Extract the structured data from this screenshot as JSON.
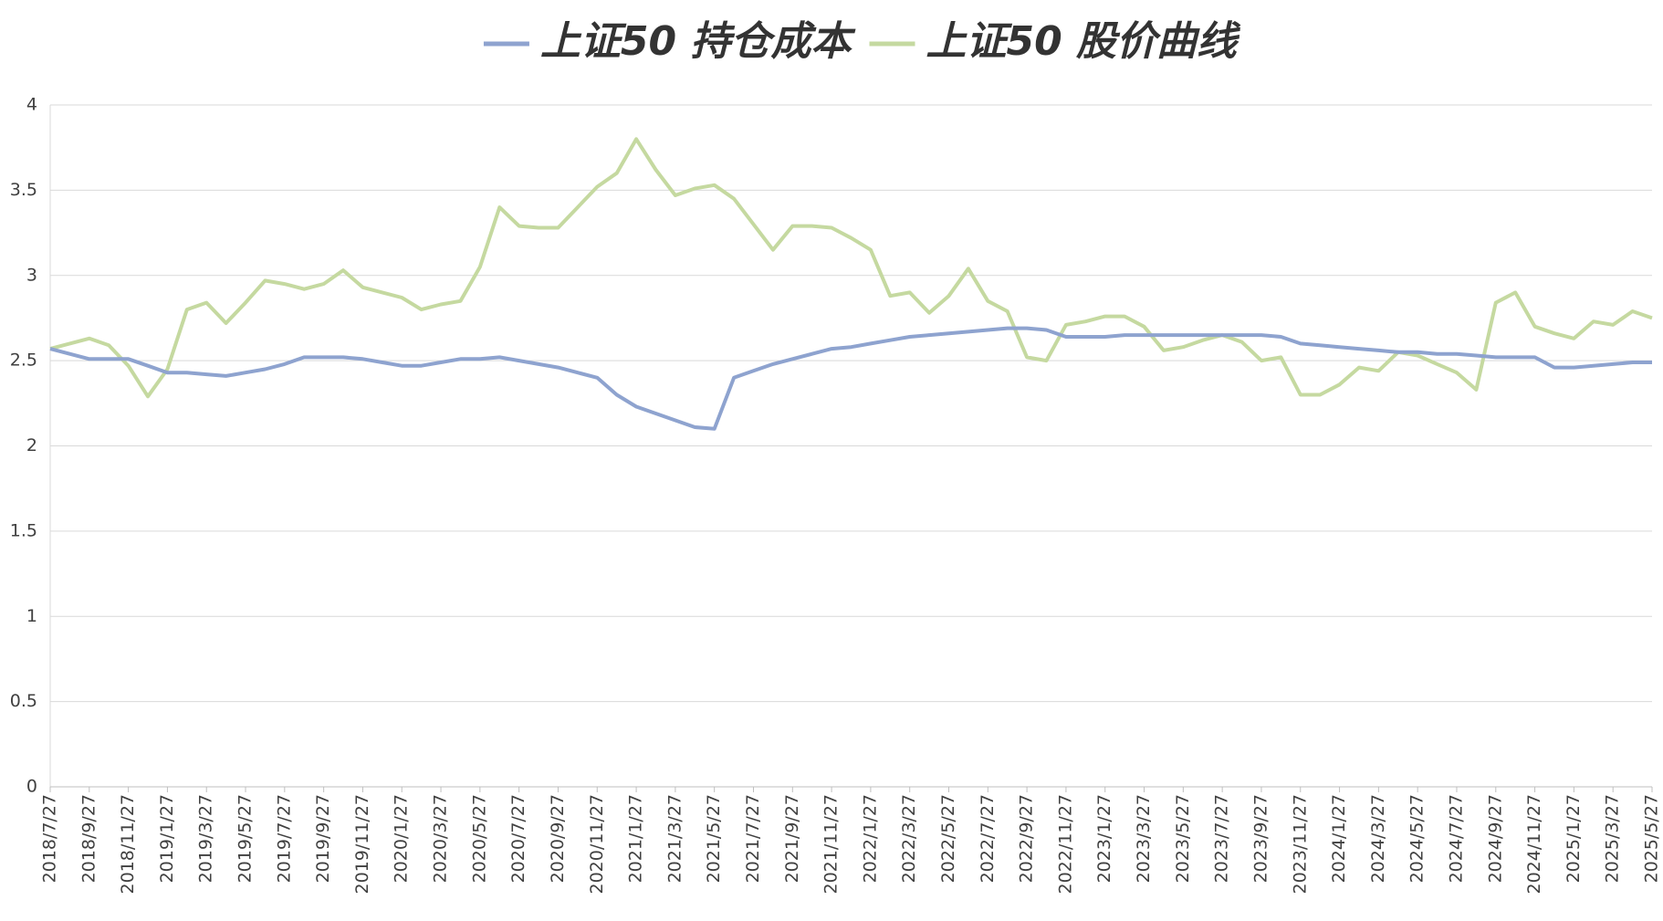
{
  "chart_data": {
    "type": "line",
    "categories": [
      "2018/7/27",
      null,
      "2018/9/27",
      null,
      "2018/11/27",
      null,
      "2019/1/27",
      null,
      "2019/3/27",
      null,
      "2019/5/27",
      null,
      "2019/7/27",
      null,
      "2019/9/27",
      null,
      "2019/11/27",
      null,
      "2020/1/27",
      null,
      "2020/3/27",
      null,
      "2020/5/27",
      null,
      "2020/7/27",
      null,
      "2020/9/27",
      null,
      "2020/11/27",
      null,
      "2021/1/27",
      null,
      "2021/3/27",
      null,
      "2021/5/27",
      null,
      "2021/7/27",
      null,
      "2021/9/27",
      null,
      "2021/11/27",
      null,
      "2022/1/27",
      null,
      "2022/3/27",
      null,
      "2022/5/27",
      null,
      "2022/7/27",
      null,
      "2022/9/27",
      null,
      "2022/11/27",
      null,
      "2023/1/27",
      null,
      "2023/3/27",
      null,
      "2023/5/27",
      null,
      "2023/7/27",
      null,
      "2023/9/27",
      null,
      "2023/11/27",
      null,
      "2024/1/27",
      null,
      "2024/3/27",
      null,
      "2024/5/27",
      null,
      "2024/7/27",
      null,
      "2024/9/27",
      null,
      "2024/11/27",
      null,
      "2025/1/27",
      null,
      "2025/3/27",
      null,
      "2025/5/27"
    ],
    "series": [
      {
        "name": "上证50 持仓成本",
        "color": "#8ea3cf",
        "values": [
          2.57,
          2.54,
          2.51,
          2.51,
          2.51,
          2.47,
          2.43,
          2.43,
          2.42,
          2.41,
          2.43,
          2.45,
          2.48,
          2.52,
          2.52,
          2.52,
          2.51,
          2.49,
          2.47,
          2.47,
          2.49,
          2.51,
          2.51,
          2.52,
          2.5,
          2.48,
          2.46,
          2.43,
          2.4,
          2.3,
          2.23,
          2.19,
          2.15,
          2.11,
          2.1,
          2.4,
          2.44,
          2.48,
          2.51,
          2.54,
          2.57,
          2.58,
          2.6,
          2.62,
          2.64,
          2.65,
          2.66,
          2.67,
          2.68,
          2.69,
          2.69,
          2.68,
          2.64,
          2.64,
          2.64,
          2.65,
          2.65,
          2.65,
          2.65,
          2.65,
          2.65,
          2.65,
          2.65,
          2.64,
          2.6,
          2.59,
          2.58,
          2.57,
          2.56,
          2.55,
          2.55,
          2.54,
          2.54,
          2.53,
          2.52,
          2.52,
          2.52,
          2.46,
          2.46,
          2.47,
          2.48,
          2.49,
          2.49
        ]
      },
      {
        "name": "上证50 股价曲线",
        "color": "#c5d9a0",
        "values": [
          2.57,
          2.6,
          2.63,
          2.59,
          2.47,
          2.29,
          2.45,
          2.8,
          2.84,
          2.72,
          2.84,
          2.97,
          2.95,
          2.92,
          2.95,
          3.03,
          2.93,
          2.9,
          2.87,
          2.8,
          2.83,
          2.85,
          3.05,
          3.4,
          3.29,
          3.28,
          3.28,
          3.4,
          3.52,
          3.6,
          3.8,
          3.62,
          3.47,
          3.51,
          3.53,
          3.45,
          3.3,
          3.15,
          3.29,
          3.29,
          3.28,
          3.22,
          3.15,
          2.88,
          2.9,
          2.78,
          2.88,
          3.04,
          2.85,
          2.79,
          2.52,
          2.5,
          2.71,
          2.73,
          2.76,
          2.76,
          2.7,
          2.56,
          2.58,
          2.62,
          2.65,
          2.61,
          2.5,
          2.52,
          2.3,
          2.3,
          2.36,
          2.46,
          2.44,
          2.55,
          2.53,
          2.48,
          2.43,
          2.33,
          2.84,
          2.9,
          2.7,
          2.66,
          2.63,
          2.73,
          2.71,
          2.79,
          2.75
        ]
      }
    ],
    "ylim": [
      0,
      4
    ],
    "yticks": [
      0,
      0.5,
      1,
      1.5,
      2,
      2.5,
      3,
      3.5,
      4
    ],
    "grid": true,
    "legend": "top"
  }
}
